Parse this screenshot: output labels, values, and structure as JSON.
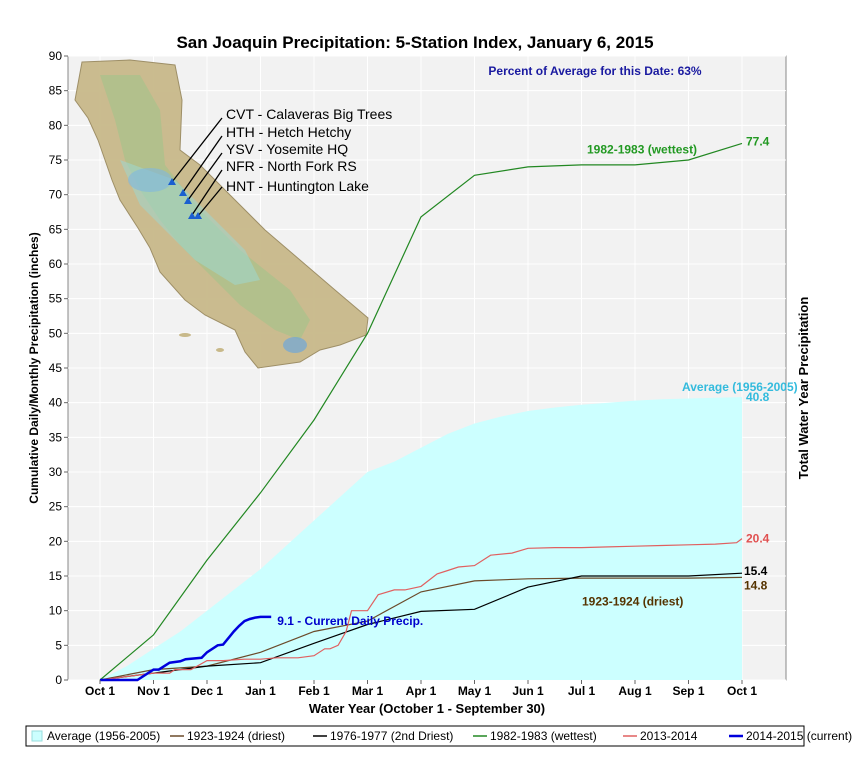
{
  "chart_data": {
    "type": "line",
    "title": "San Joaquin Precipitation: 5-Station Index, January 6, 2015",
    "xlabel": "Water Year (October 1 - September 30)",
    "ylabel": "Cumulative Daily/Monthly Precipitation (inches)",
    "ylabel_right": "Total Water Year Precipitation",
    "ylim": [
      0,
      90
    ],
    "yticks": [
      "0",
      "5",
      "10",
      "15",
      "20",
      "25",
      "30",
      "35",
      "40",
      "45",
      "50",
      "55",
      "60",
      "65",
      "70",
      "75",
      "80",
      "85",
      "90"
    ],
    "x_categories": [
      "Oct 1",
      "Nov 1",
      "Dec 1",
      "Jan 1",
      "Feb 1",
      "Mar 1",
      "Apr 1",
      "May 1",
      "Jun 1",
      "Jul 1",
      "Aug 1",
      "Sep 1",
      "Oct 1"
    ],
    "grid": true,
    "legend_position": "bottom",
    "percent_of_average_text": "Percent of Average for this Date: 63%",
    "series": [
      {
        "name": "Average (1956-2005)",
        "kind": "area",
        "color": "#ccffff",
        "x": [
          0,
          0.5,
          1,
          1.5,
          2,
          2.5,
          3,
          3.5,
          4,
          4.5,
          5,
          5.5,
          6,
          6.5,
          7,
          7.5,
          8,
          8.5,
          9,
          9.5,
          10,
          10.5,
          11,
          11.5,
          12
        ],
        "values": [
          0,
          2,
          4.5,
          7,
          10,
          13,
          16,
          19.5,
          23,
          26.5,
          30,
          31.5,
          33.5,
          35.5,
          37,
          38,
          38.8,
          39.3,
          39.7,
          40,
          40.3,
          40.5,
          40.6,
          40.7,
          40.8
        ],
        "end_label": "40.8",
        "label": "Average (1956-2005)",
        "label_color": "#33bbdd"
      },
      {
        "name": "1923-1924 (driest)",
        "kind": "line",
        "color": "#6b4a2a",
        "x": [
          0,
          1,
          2,
          3,
          4,
          5,
          6,
          7,
          8,
          9,
          10,
          11,
          12
        ],
        "values": [
          0,
          1.5,
          2.0,
          4.0,
          7.0,
          8.5,
          12.7,
          14.3,
          14.6,
          14.7,
          14.7,
          14.7,
          14.8
        ],
        "end_label": "14.8",
        "label": "1923-1924 (driest)",
        "label_color": "#553300"
      },
      {
        "name": "1976-1977 (2nd Driest)",
        "kind": "line",
        "color": "#000000",
        "x": [
          0,
          1,
          2,
          3,
          4,
          5,
          6,
          7,
          8,
          9,
          10,
          11,
          12
        ],
        "values": [
          0,
          1.0,
          2.0,
          2.5,
          5.3,
          8.0,
          9.9,
          10.2,
          13.4,
          15.0,
          15.0,
          15.0,
          15.4
        ],
        "end_label": "15.4",
        "label_color": "#000000"
      },
      {
        "name": "1982-1983 (wettest)",
        "kind": "line",
        "color": "#228822",
        "x": [
          0,
          1,
          2,
          3,
          4,
          5,
          6,
          7,
          8,
          9,
          10,
          11,
          12
        ],
        "values": [
          0,
          6.5,
          17.3,
          27,
          37.5,
          50,
          66.8,
          72.8,
          74.0,
          74.3,
          74.3,
          75.0,
          77.4
        ],
        "end_label": "77.4",
        "label": "1982-1983 (wettest)",
        "label_color": "#229922"
      },
      {
        "name": "2013-2014",
        "kind": "line",
        "color": "#e06060",
        "x": [
          0,
          1.0,
          1.3,
          1.4,
          1.7,
          2.0,
          2.3,
          2.7,
          3.0,
          3.3,
          3.7,
          4.0,
          4.2,
          4.3,
          4.45,
          4.6,
          4.7,
          5.0,
          5.2,
          5.5,
          5.7,
          6.0,
          6.3,
          6.5,
          6.7,
          7.0,
          7.3,
          7.7,
          8.0,
          8.5,
          9.0,
          9.5,
          10.0,
          10.5,
          11.0,
          11.5,
          11.9,
          12.0
        ],
        "values": [
          0,
          1.0,
          1.0,
          1.5,
          1.5,
          2.8,
          2.8,
          3.0,
          3.0,
          3.2,
          3.2,
          3.5,
          4.5,
          4.5,
          5.0,
          7.0,
          10.0,
          10.0,
          12.3,
          13.0,
          13.0,
          13.5,
          15.3,
          15.8,
          16.3,
          16.5,
          18.0,
          18.3,
          19.0,
          19.1,
          19.1,
          19.2,
          19.3,
          19.4,
          19.5,
          19.6,
          19.8,
          20.4
        ],
        "end_label": "20.4",
        "label_color": "#e05050"
      },
      {
        "name": "2014-2015 (current)",
        "kind": "line",
        "color": "#0000dd",
        "x": [
          0,
          0.7,
          1.0,
          1.1,
          1.3,
          1.5,
          1.6,
          1.9,
          2.0,
          2.2,
          2.3,
          2.5,
          2.6,
          2.7,
          2.8,
          2.9,
          3.0,
          3.1,
          3.2
        ],
        "values": [
          0,
          0,
          1.5,
          1.5,
          2.5,
          2.7,
          3.0,
          3.2,
          4.0,
          5.0,
          5.1,
          7.0,
          7.8,
          8.5,
          8.8,
          9.0,
          9.1,
          9.1,
          9.1
        ],
        "end_label": "9.1 -  Current Daily Precip.",
        "label_color": "#0000cc"
      }
    ]
  },
  "map_inset": {
    "stations": [
      "CVT - Calaveras Big Trees",
      "HTH - Hetch Hetchy",
      "YSV - Yosemite HQ",
      "NFR - North Fork RS",
      "HNT - Huntington Lake"
    ]
  },
  "legend": {
    "items": [
      {
        "label": "Average (1956-2005)",
        "color": "#ccffff",
        "kind": "area"
      },
      {
        "label": "1923-1924 (driest)",
        "color": "#6b4a2a",
        "kind": "line"
      },
      {
        "label": "1976-1977 (2nd Driest)",
        "color": "#000000",
        "kind": "line"
      },
      {
        "label": "1982-1983 (wettest)",
        "color": "#228822",
        "kind": "line"
      },
      {
        "label": "2013-2014",
        "color": "#e06060",
        "kind": "line"
      },
      {
        "label": "2014-2015 (current)",
        "color": "#0000dd",
        "kind": "line"
      }
    ]
  }
}
